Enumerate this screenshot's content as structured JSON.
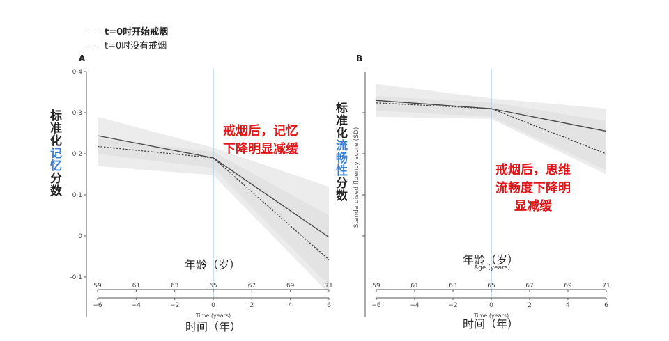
{
  "legend": {
    "quit_label": "t=0时开始戒烟",
    "no_quit_label": "t=0时没有戒烟"
  },
  "annotations": {
    "a_note_line1": "戒烟后，记忆",
    "a_note_line2": "下降明显减缓",
    "b_note_line1": "戒烟后，思维",
    "b_note_line2": "流畅度下降明",
    "b_note_line3": "显减缓"
  },
  "panel_a_ylabel": {
    "part1": "标准化",
    "part2": "记忆",
    "part3": "分数"
  },
  "panel_b_ylabel": {
    "part1": "标准化",
    "part2": "流畅性",
    "part3": "分数",
    "english": "Standardised  fluency score (SD)"
  },
  "chart_data": [
    {
      "panel": "A",
      "type": "line",
      "xlabel_en": "Time (years)",
      "xlabel_zh": "时间（年）",
      "age_label_zh": "年龄（岁）",
      "x_ticks": [
        -6,
        -4,
        -2,
        0,
        2,
        4,
        6
      ],
      "age_ticks": [
        59,
        61,
        63,
        65,
        67,
        69,
        71
      ],
      "y_ticks": [
        -0.1,
        0,
        0.1,
        0.2,
        0.3,
        0.4
      ],
      "y_tick_labels": [
        "-0·1",
        "0",
        "0·1",
        "0·2",
        "0·3",
        "0·4"
      ],
      "xlim": [
        -6,
        6
      ],
      "ylim": [
        -0.1,
        0.4
      ],
      "series": [
        {
          "name": "t=0时开始戒烟",
          "style": "solid",
          "color": "#444444",
          "x": [
            -6,
            0,
            6
          ],
          "y": [
            0.244,
            0.19,
            -0.003
          ],
          "ci_upper": [
            0.29,
            0.215,
            0.12
          ],
          "ci_lower": [
            0.2,
            0.165,
            -0.12
          ]
        },
        {
          "name": "t=0时没有戒烟",
          "style": "dotted",
          "color": "#444444",
          "x": [
            -6,
            0,
            6
          ],
          "y": [
            0.218,
            0.19,
            -0.058
          ],
          "ci_upper": [
            0.238,
            0.205,
            0.05
          ],
          "ci_lower": [
            0.17,
            0.148,
            -0.14
          ]
        }
      ]
    },
    {
      "panel": "B",
      "type": "line",
      "xlabel_en": "Time (years)",
      "xlabel_zh": "时间（年）",
      "age_label_zh": "年龄（岁）",
      "age_label_en": "Age (years)",
      "x_ticks": [
        -6,
        -4,
        -2,
        0,
        2,
        4,
        6
      ],
      "age_ticks": [
        59,
        61,
        63,
        65,
        67,
        69,
        71
      ],
      "xlim": [
        -6,
        6
      ],
      "ylim": [
        -0.1,
        0.4
      ],
      "series": [
        {
          "name": "t=0时开始戒烟",
          "style": "solid",
          "color": "#444444",
          "x": [
            -6,
            0,
            6
          ],
          "y": [
            0.33,
            0.31,
            0.255
          ],
          "ci_upper": [
            0.37,
            0.335,
            0.31
          ],
          "ci_lower": [
            0.29,
            0.285,
            0.15
          ]
        },
        {
          "name": "t=0时没有戒烟",
          "style": "dotted",
          "color": "#444444",
          "x": [
            -6,
            0,
            6
          ],
          "y": [
            0.324,
            0.31,
            0.2
          ],
          "ci_upper": [
            0.34,
            0.325,
            0.28
          ],
          "ci_lower": [
            0.305,
            0.29,
            0.16
          ]
        }
      ]
    }
  ],
  "colors": {
    "divider_line": "#9ecbe6",
    "band": "#e4e4e4",
    "note_red": "#e0161a",
    "label_blue": "#3a7fd5"
  }
}
